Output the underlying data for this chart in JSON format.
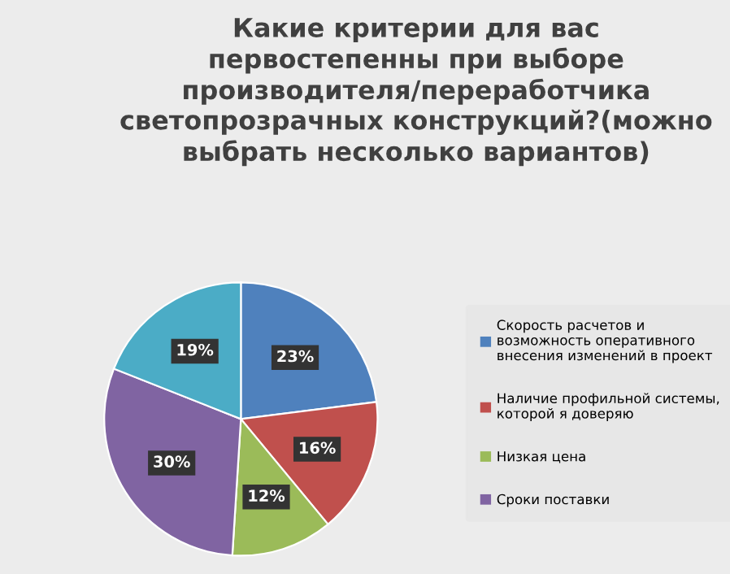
{
  "chart_data": {
    "type": "pie",
    "title": "Какие критерии для вас первостепенны при выборе производителя/переработчика светопрозрачных конструкций?(можно выбрать несколько вариантов)",
    "categories": [
      "Скорость расчетов и возможность оперативного внесения изменений в проект",
      "Наличие профильной системы, которой я доверяю",
      "Низкая цена",
      "Сроки поставки",
      null
    ],
    "values": [
      23,
      16,
      12,
      30,
      19
    ],
    "value_labels": [
      "23%",
      "16%",
      "12%",
      "30%",
      "19%"
    ],
    "colors": [
      "#4f81bd",
      "#c0504d",
      "#9bbb59",
      "#8064a2",
      "#4bacc6"
    ],
    "legend": "right"
  }
}
